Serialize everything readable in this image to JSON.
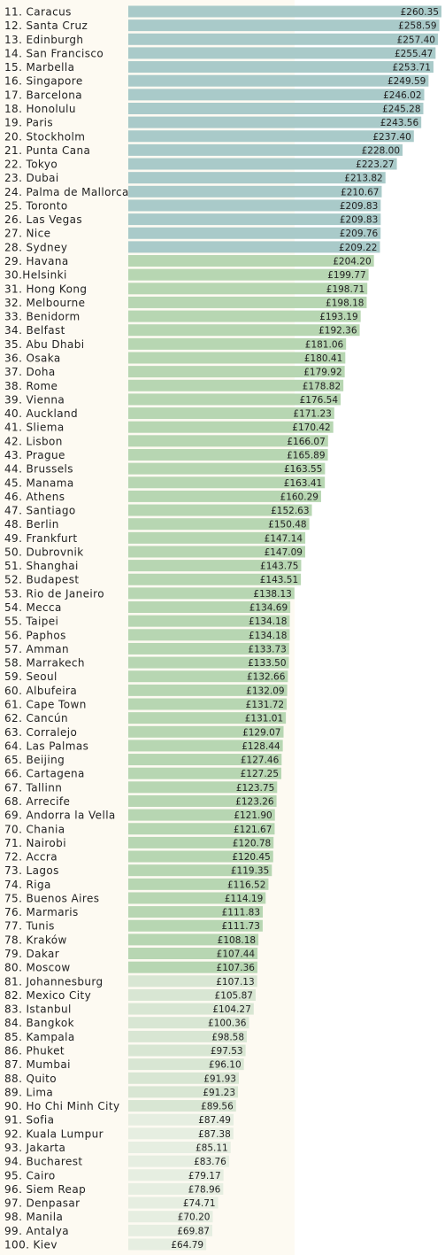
{
  "chart_data": {
    "type": "bar",
    "categories": [
      "11. Caracus",
      "12. Santa Cruz",
      "13. Edinburgh",
      "14. San Francisco",
      "15. Marbella",
      "16. Singapore",
      "17. Barcelona",
      "18. Honolulu",
      "19. Paris",
      "20. Stockholm",
      "21. Punta Cana",
      "22. Tokyo",
      "23. Dubai",
      "24. Palma de Mallorca",
      "25. Toronto",
      "26. Las Vegas",
      "27. Nice",
      "28. Sydney",
      "29. Havana",
      "30.Helsinki",
      "31. Hong Kong",
      "32. Melbourne",
      "33. Benidorm",
      "34. Belfast",
      "35. Abu Dhabi",
      "36. Osaka",
      "37. Doha",
      "38. Rome",
      "39. Vienna",
      "40. Auckland",
      "41. Sliema",
      "42. Lisbon",
      "43. Prague",
      "44. Brussels",
      "45. Manama",
      "46. Athens",
      "47. Santiago",
      "48. Berlin",
      "49. Frankfurt",
      "50. Dubrovnik",
      "51. Shanghai",
      "52. Budapest",
      "53. Rio de Janeiro",
      "54. Mecca",
      "55. Taipei",
      "56. Paphos",
      "57. Amman",
      "58. Marrakech",
      "59. Seoul",
      "60. Albufeira",
      "61. Cape Town",
      "62. Cancún",
      "63. Corralejo",
      "64. Las Palmas",
      "65. Beijing",
      "66. Cartagena",
      "67. Tallinn",
      "68. Arrecife",
      "69. Andorra la Vella",
      "70. Chania",
      "71. Nairobi",
      "72. Accra",
      "73. Lagos",
      "74. Riga",
      "75. Buenos Aires",
      "76. Marmaris",
      "77. Tunis",
      "78. Kraków",
      "79. Dakar",
      "80. Moscow",
      "81. Johannesburg",
      "82. Mexico City",
      "83. Istanbul",
      "84. Bangkok",
      "85. Kampala",
      "86. Phuket",
      "87. Mumbai",
      "88. Quito",
      "89. Lima",
      "90. Ho Chi Minh City",
      "91. Sofia",
      "92. Kuala Lumpur",
      "93. Jakarta",
      "94. Bucharest",
      "95. Cairo",
      "96. Siem Reap",
      "97. Denpasar",
      "98. Manila",
      "99. Antalya",
      "100. Kiev"
    ],
    "values": [
      260.35,
      258.59,
      257.4,
      255.47,
      253.71,
      249.59,
      246.02,
      245.28,
      243.56,
      237.4,
      228,
      223.27,
      213.82,
      210.67,
      209.83,
      209.83,
      209.76,
      209.22,
      204.2,
      199.77,
      198.71,
      198.18,
      193.19,
      192.36,
      181.06,
      180.41,
      179.92,
      178.82,
      176.54,
      171.23,
      170.42,
      166.07,
      165.89,
      163.55,
      163.41,
      160.29,
      152.63,
      150.48,
      147.14,
      147.09,
      143.75,
      143.51,
      138.13,
      134.69,
      134.18,
      134.18,
      133.73,
      133.5,
      132.66,
      132.09,
      131.72,
      131.01,
      129.07,
      128.44,
      127.46,
      127.25,
      123.75,
      123.26,
      121.9,
      121.67,
      120.78,
      120.45,
      119.35,
      116.52,
      114.19,
      111.83,
      111.73,
      108.18,
      107.44,
      107.36,
      107.13,
      105.87,
      104.27,
      100.36,
      98.58,
      97.53,
      96.1,
      91.93,
      91.23,
      89.56,
      87.49,
      87.38,
      85.11,
      83.76,
      79.17,
      78.96,
      74.71,
      70.2,
      69.87,
      64.79
    ],
    "value_labels": [
      "£260.35",
      "£258.59",
      "£257.40",
      "£255.47",
      "£253.71",
      "£249.59",
      "£246.02",
      "£245.28",
      "£243.56",
      "£237.40",
      "£228.00",
      "£223.27",
      "£213.82",
      "£210.67",
      "£209.83",
      "£209.83",
      "£209.76",
      "£209.22",
      "£204.20",
      "£199.77",
      "£198.71",
      "£198.18",
      "£193.19",
      "£192.36",
      "£181.06",
      "£180.41",
      "£179.92",
      "£178.82",
      "£176.54",
      "£171.23",
      "£170.42",
      "£166.07",
      "£165.89",
      "£163.55",
      "£163.41",
      "£160.29",
      "£152.63",
      "£150.48",
      "£147.14",
      "£147.09",
      "£143.75",
      "£143.51",
      "£138.13",
      "£134.69",
      "£134.18",
      "£134.18",
      "£133.73",
      "£133.50",
      "£132.66",
      "£132.09",
      "£131.72",
      "£131.01",
      "£129.07",
      "£128.44",
      "£127.46",
      "£127.25",
      "£123.75",
      "£123.26",
      "£121.90",
      "£121.67",
      "£120.78",
      "£120.45",
      "£119.35",
      "£116.52",
      "£114.19",
      "£111.83",
      "£111.73",
      "£108.18",
      "£107.44",
      "£107.36",
      "£107.13",
      "£105.87",
      "£104.27",
      "£100.36",
      "£98.58",
      "£97.53",
      "£96.10",
      "£91.93",
      "£91.23",
      "£89.56",
      "£87.49",
      "£87.38",
      "£85.11",
      "£83.76",
      "£79.17",
      "£78.96",
      "£74.71",
      "£70.20",
      "£69.87",
      "£64.79"
    ],
    "colors": [
      "#a9cac9",
      "#a9cac9",
      "#a9cac9",
      "#a9cac9",
      "#a9cac9",
      "#a9cac9",
      "#a9cac9",
      "#a9cac9",
      "#a9cac9",
      "#a9cac9",
      "#a9cac9",
      "#a9cac9",
      "#a9cac9",
      "#a9cac9",
      "#a9cac9",
      "#a9cac9",
      "#a9cac9",
      "#a9cac9",
      "#b7d6b2",
      "#b7d6b2",
      "#b7d6b2",
      "#b7d6b2",
      "#b7d6b2",
      "#b7d6b2",
      "#b7d6b2",
      "#b7d6b2",
      "#b7d6b2",
      "#b7d6b2",
      "#b7d6b2",
      "#b7d6b2",
      "#b7d6b2",
      "#b7d6b2",
      "#b7d6b2",
      "#b7d6b2",
      "#b7d6b2",
      "#b7d6b2",
      "#b7d6b2",
      "#b7d6b2",
      "#b7d6b2",
      "#b7d6b2",
      "#b7d6b2",
      "#b7d6b2",
      "#b7d6b2",
      "#b7d6b2",
      "#b7d6b2",
      "#b7d6b2",
      "#b7d6b2",
      "#b7d6b2",
      "#b7d6b2",
      "#b7d6b2",
      "#b7d6b2",
      "#b7d6b2",
      "#b7d6b2",
      "#b7d6b2",
      "#b7d6b2",
      "#b7d6b2",
      "#b7d6b2",
      "#b7d6b2",
      "#b7d6b2",
      "#b7d6b2",
      "#b7d6b2",
      "#b7d6b2",
      "#b7d6b2",
      "#b7d6b2",
      "#b7d6b2",
      "#b7d6b2",
      "#b7d6b2",
      "#b7d6b2",
      "#b7d6b2",
      "#b7d6b2",
      "#d8e6d3",
      "#d8e6d3",
      "#d8e6d3",
      "#d8e6d3",
      "#d8e6d3",
      "#d8e6d3",
      "#d8e6d3",
      "#d8e6d3",
      "#d8e6d3",
      "#d8e6d3",
      "#e6eee1",
      "#e6eee1",
      "#e6eee1",
      "#e6eee1",
      "#e6eee1",
      "#e6eee1",
      "#e6eee1",
      "#e6eee1",
      "#e6eee1",
      "#e6eee1"
    ]
  }
}
